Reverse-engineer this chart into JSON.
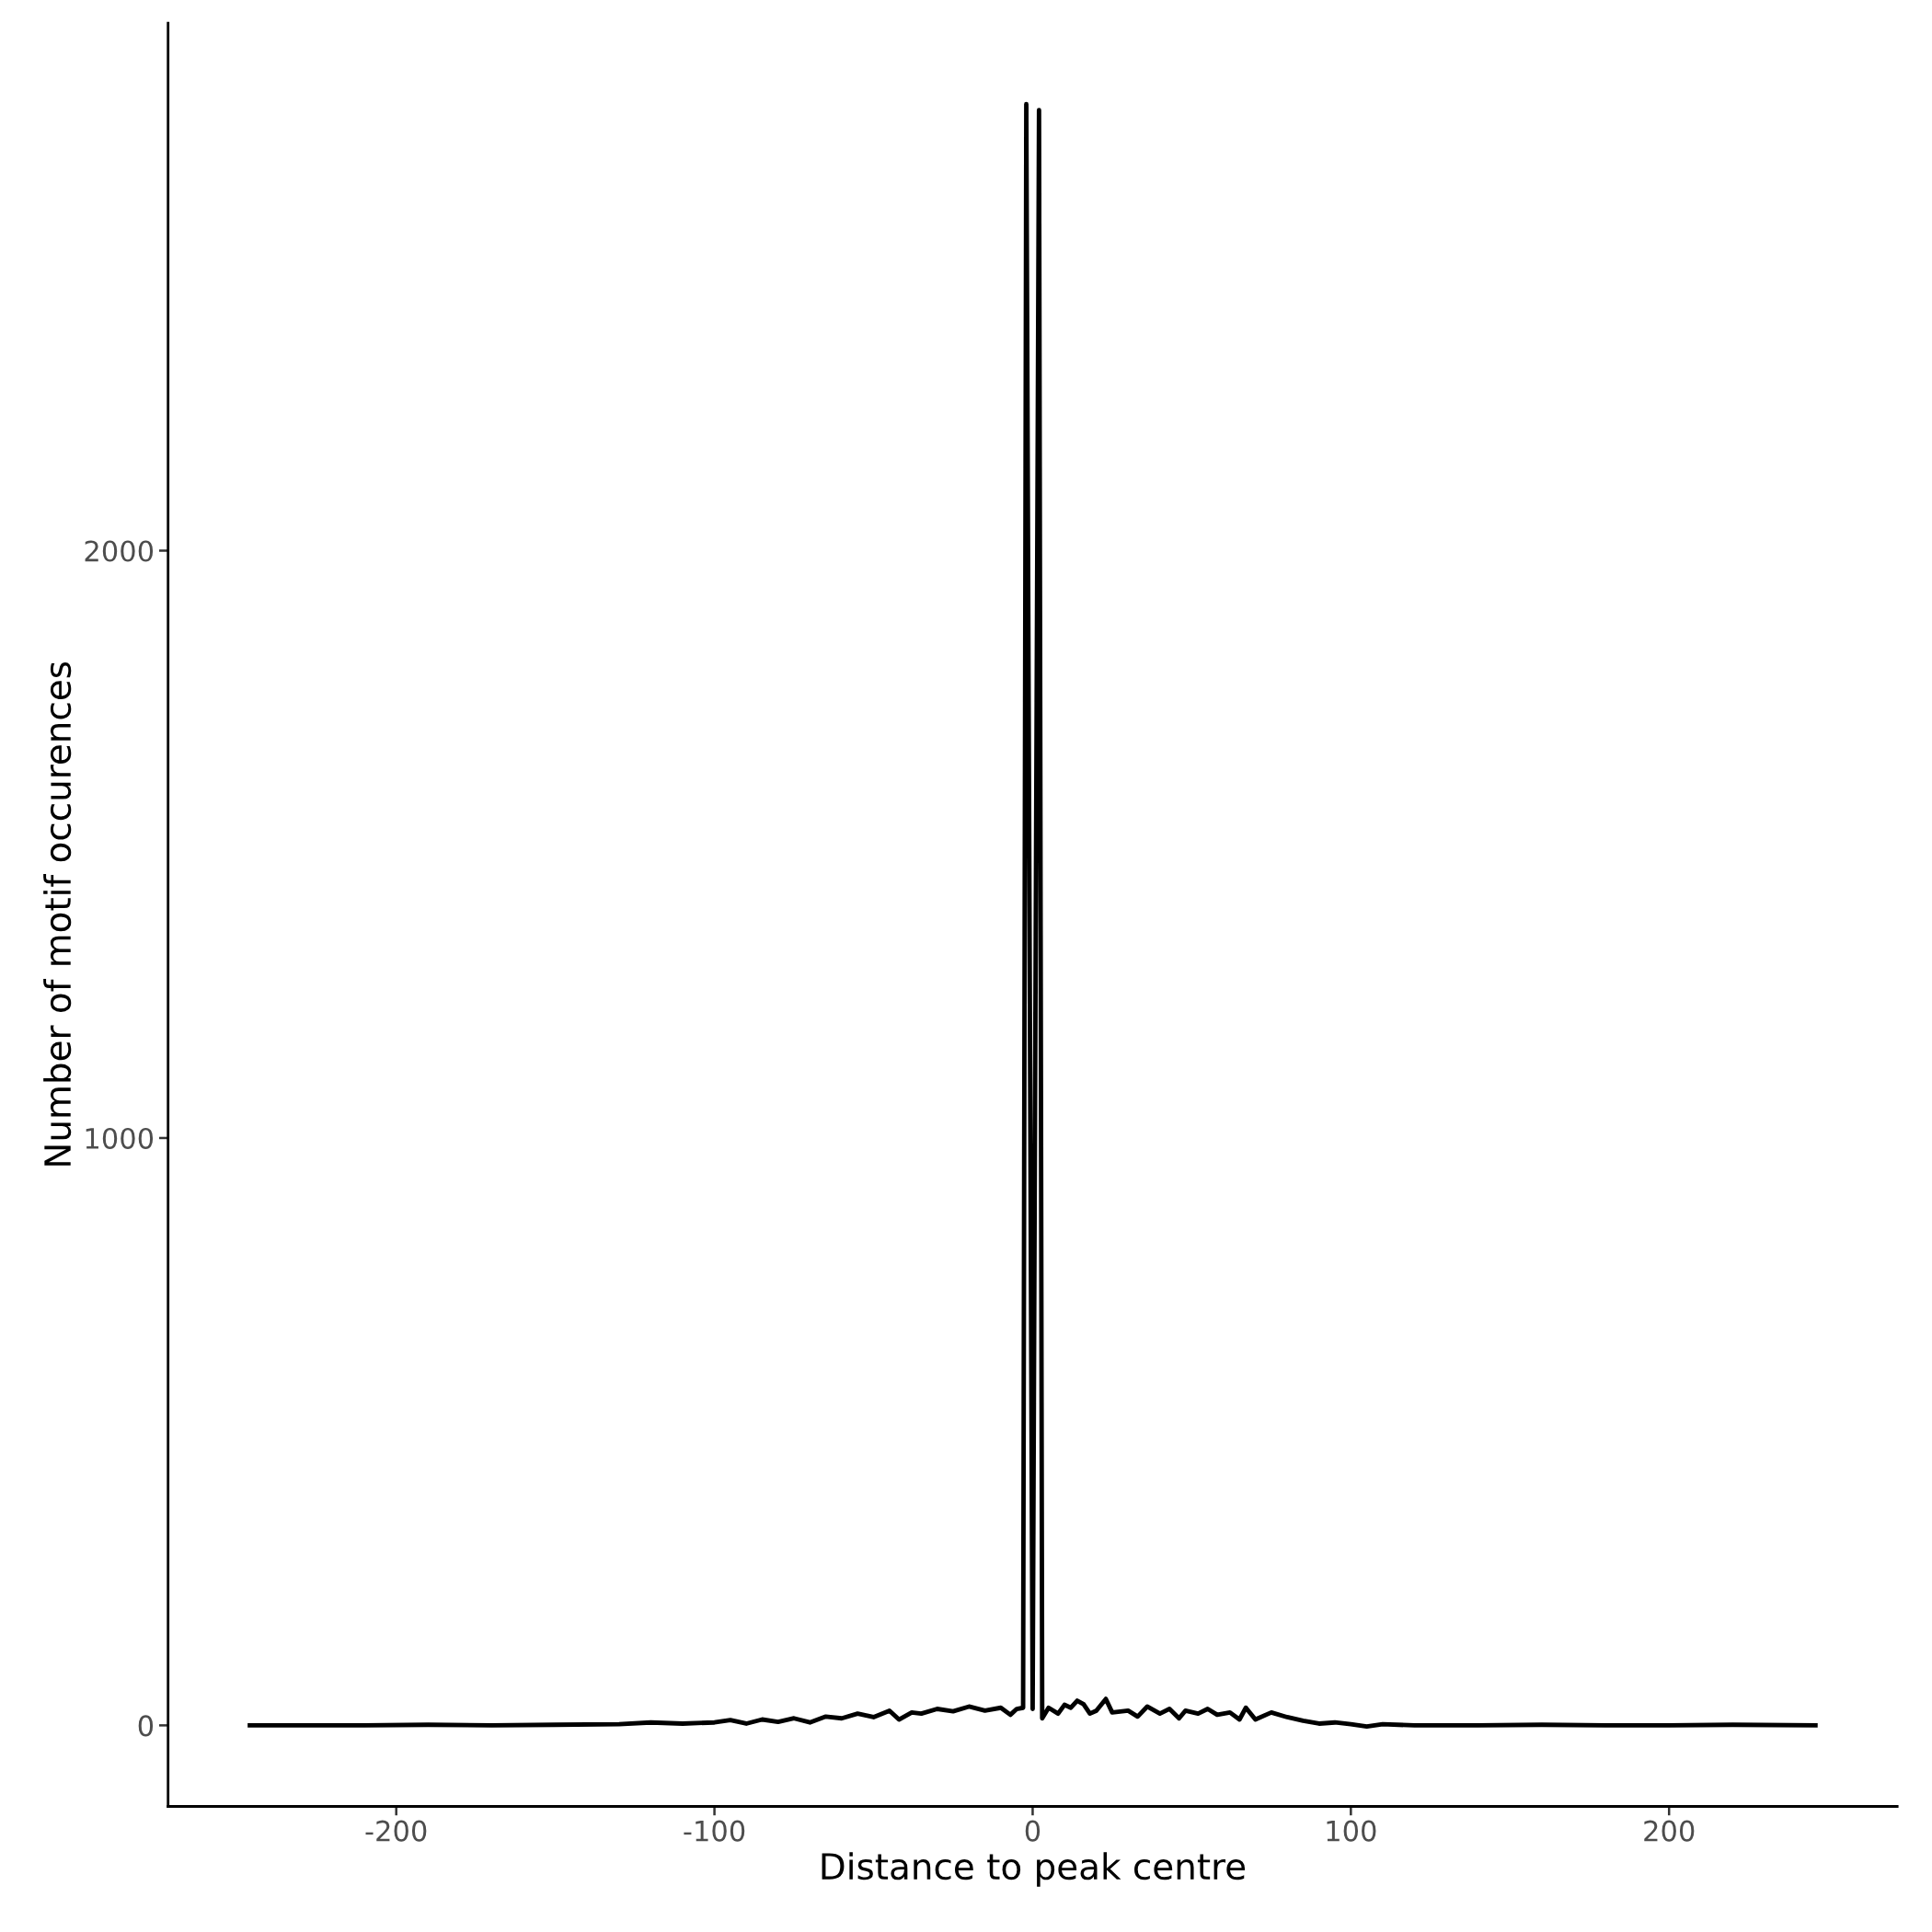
{
  "chart_data": {
    "type": "line",
    "xlabel": "Distance to peak centre",
    "ylabel": "Number of motif occurences",
    "x": [
      -246,
      -230,
      -210,
      -190,
      -170,
      -150,
      -130,
      -120,
      -110,
      -100,
      -95,
      -90,
      -85,
      -80,
      -75,
      -70,
      -65,
      -60,
      -55,
      -50,
      -45,
      -42,
      -38,
      -35,
      -30,
      -25,
      -20,
      -15,
      -10,
      -7,
      -5,
      -3,
      -2,
      0,
      2,
      3,
      5,
      8,
      10,
      12,
      14,
      16,
      18,
      20,
      23,
      25,
      30,
      33,
      36,
      40,
      43,
      46,
      48,
      52,
      55,
      58,
      62,
      65,
      67,
      70,
      75,
      80,
      85,
      90,
      95,
      100,
      105,
      110,
      120,
      140,
      160,
      180,
      200,
      220,
      246
    ],
    "series": [
      {
        "color": "#000000",
        "values": [
          0,
          0,
          0,
          1,
          0,
          1,
          2,
          5,
          3,
          5,
          9,
          3,
          10,
          6,
          12,
          5,
          15,
          12,
          20,
          14,
          25,
          10,
          22,
          20,
          28,
          24,
          32,
          25,
          30,
          18,
          28,
          30,
          2760,
          28,
          2750,
          12,
          30,
          20,
          35,
          30,
          42,
          36,
          20,
          25,
          45,
          22,
          25,
          15,
          32,
          20,
          28,
          12,
          25,
          20,
          28,
          18,
          22,
          10,
          30,
          10,
          22,
          14,
          8,
          3,
          5,
          2,
          -2,
          2,
          0,
          0,
          1,
          0,
          0,
          1,
          0
        ]
      }
    ],
    "xlim": [
      -271.7,
      271.7
    ],
    "ylim": [
      -138,
      2898
    ],
    "xticks": [
      -200,
      -100,
      0,
      100,
      200
    ],
    "yticks": [
      0,
      1000,
      2000
    ],
    "grid": false,
    "legend": false,
    "marker": "none",
    "line_style": "solid"
  }
}
